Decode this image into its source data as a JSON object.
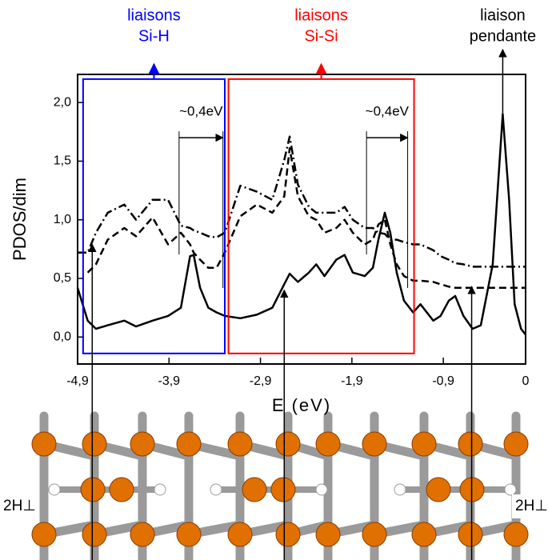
{
  "chart_data": {
    "type": "line",
    "x": [
      -4.9,
      -4.79,
      -4.7,
      -4.57,
      -4.39,
      -4.26,
      -4.08,
      -3.91,
      -3.77,
      -3.67,
      -3.63,
      -3.56,
      -3.47,
      -3.38,
      -3.29,
      -3.12,
      -2.94,
      -2.77,
      -2.64,
      -2.58,
      -2.49,
      -2.37,
      -2.29,
      -2.2,
      -2.07,
      -1.98,
      -1.89,
      -1.76,
      -1.67,
      -1.61,
      -1.54,
      -1.48,
      -1.41,
      -1.33,
      -1.23,
      -1.15,
      -1.01,
      -0.93,
      -0.84,
      -0.77,
      -0.68,
      -0.58,
      -0.49,
      -0.36,
      -0.25,
      -0.18,
      -0.12,
      -0.05,
      0
    ],
    "series": [
      {
        "color": "#000000",
        "dash": "solid",
        "values": [
          0.42,
          0.14,
          0.07,
          0.1,
          0.14,
          0.09,
          0.14,
          0.18,
          0.25,
          0.69,
          0.7,
          0.42,
          0.25,
          0.21,
          0.18,
          0.16,
          0.19,
          0.25,
          0.45,
          0.54,
          0.47,
          0.55,
          0.62,
          0.52,
          0.66,
          0.7,
          0.55,
          0.52,
          0.59,
          0.83,
          1.06,
          0.89,
          0.55,
          0.31,
          0.21,
          0.28,
          0.14,
          0.18,
          0.31,
          0.35,
          0.18,
          0.07,
          0.1,
          0.62,
          1.9,
          1.17,
          0.28,
          0.07,
          0.02
        ]
      },
      {
        "color": "#000000",
        "dash": "dashed",
        "values": [
          null,
          0.55,
          0.62,
          0.83,
          0.93,
          0.86,
          1.02,
          0.79,
          0.89,
          0.79,
          0.72,
          0.66,
          0.59,
          0.59,
          0.72,
          1.03,
          1.13,
          1.06,
          1.2,
          1.61,
          1.2,
          1.03,
          1.0,
          0.89,
          0.93,
          1.0,
          0.89,
          0.79,
          0.83,
          0.96,
          1.0,
          0.79,
          0.62,
          0.52,
          0.48,
          0.48,
          0.47,
          0.45,
          0.43,
          0.42,
          0.42,
          0.42,
          0.42,
          0.42,
          0.42,
          0.42,
          0.42,
          0.42,
          0.42
        ]
      },
      {
        "color": "#000000",
        "dash": "dashdot",
        "values": [
          0.72,
          0.72,
          0.89,
          1.06,
          1.13,
          1.0,
          1.17,
          1.17,
          0.95,
          0.93,
          0.91,
          0.89,
          0.86,
          0.85,
          0.89,
          1.29,
          1.24,
          1.17,
          1.51,
          1.71,
          1.3,
          1.11,
          1.06,
          1.06,
          1.06,
          1.11,
          1.0,
          0.93,
          0.93,
          0.89,
          0.88,
          0.83,
          0.83,
          0.81,
          0.79,
          0.79,
          0.74,
          0.69,
          0.66,
          0.63,
          0.62,
          0.6,
          0.6,
          0.6,
          0.6,
          0.6,
          0.6,
          0.6,
          0.6
        ]
      }
    ],
    "xlabel": "E (eV)",
    "ylabel": "PDOS/dim",
    "xlim": [
      -4.9,
      0
    ],
    "ylim": [
      -0.23,
      2.24
    ],
    "xticks": [
      {
        "value": -4.9,
        "label": "-4,9"
      },
      {
        "value": -3.9,
        "label": "-3,9"
      },
      {
        "value": -2.9,
        "label": "-2,9"
      },
      {
        "value": -1.9,
        "label": "-1,9"
      },
      {
        "value": -0.9,
        "label": "-0,9"
      },
      0
    ],
    "yticks": [
      {
        "value": 0,
        "label": "0,0"
      },
      {
        "value": 0.5,
        "label": "0,5"
      },
      {
        "value": 1,
        "label": "1,0"
      },
      {
        "value": 1.5,
        "label": "1,5"
      },
      {
        "value": 2,
        "label": "2,0"
      }
    ],
    "regions": [
      {
        "lines": [
          "liaisons",
          "Si-H"
        ],
        "color": "#0000ff",
        "xlim": [
          -4.84,
          -3.29
        ],
        "ylim": [
          -0.14,
          2.2
        ]
      },
      {
        "lines": [
          "liaisons",
          "Si-Si"
        ],
        "color": "#ff0000",
        "xlim": [
          -3.25,
          -1.22
        ],
        "ylim": [
          -0.14,
          2.2
        ]
      }
    ],
    "peak_label": {
      "lines": [
        "liaison",
        "pendante"
      ],
      "x": -0.25,
      "y": 1.9
    },
    "gaps": [
      {
        "text": "~0,4eV",
        "x": [
          -3.79,
          -3.31
        ],
        "y": 1.7
      },
      {
        "text": "~0,4eV",
        "x": [
          -1.74,
          -1.29
        ],
        "y": 1.7
      }
    ],
    "pointers": [
      {
        "x": -4.74,
        "y": 0.79
      },
      {
        "x": -2.64,
        "y": 0.4
      },
      {
        "x": -0.59,
        "y": 0.43
      }
    ],
    "structure_labels": [
      "2H⊥",
      "2H⊥"
    ]
  }
}
